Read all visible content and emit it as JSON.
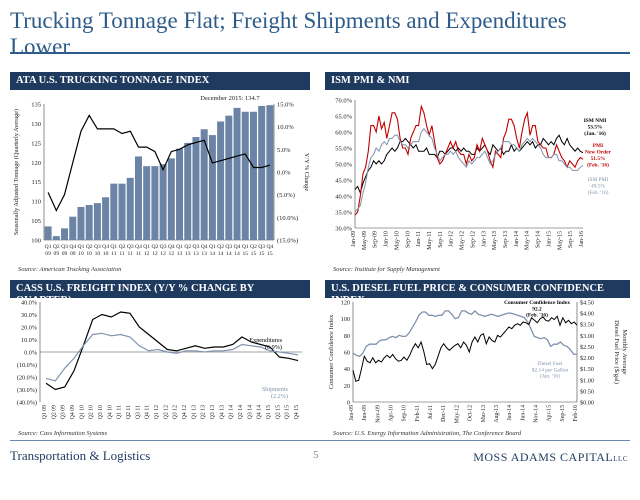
{
  "page": {
    "title": "Trucking Tonnage Flat; Freight Shipments and Expenditures Lower",
    "footer_left": "Transportation & Logistics",
    "page_number": "5",
    "footer_brand": "MOSS ADAMS CAPITAL",
    "footer_brand_suffix": "LLC"
  },
  "panels": {
    "ata": {
      "header": "ATA U.S. TRUCKING TONNAGE INDEX",
      "source": "Source: American Trucking Association"
    },
    "ism": {
      "header": "ISM PMI & NMI",
      "source": "Source: Institute for Supply Management"
    },
    "cass": {
      "header": "CASS U.S. FREIGHT INDEX (Y/Y % CHANGE BY QUARTER)",
      "source": "Source: Cass Information Systems"
    },
    "diesel": {
      "header": "U.S. DIESEL FUEL PRICE & CONSUMER CONFIDENCE INDEX",
      "source": "Source: U.S. Energy Information Administration, The Conference Board"
    }
  },
  "chart_data": [
    {
      "id": "ata",
      "type": "bar",
      "categories": [
        "Q1 09",
        "Q2 09",
        "Q3 09",
        "Q4 09",
        "Q1 10",
        "Q2 10",
        "Q3 10",
        "Q4 10",
        "Q1 11",
        "Q2 11",
        "Q3 11",
        "Q4 11",
        "Q1 12",
        "Q2 12",
        "Q3 12",
        "Q4 12",
        "Q1 13",
        "Q2 13",
        "Q3 13",
        "Q4 13",
        "Q1 14",
        "Q2 14",
        "Q3 14",
        "Q4 14",
        "Q1 15",
        "Q2 15",
        "Q3 15",
        "Q4 15"
      ],
      "tick_top": [
        "Q1",
        "Q2",
        "Q3",
        "Q4",
        "Q1",
        "Q2",
        "Q3",
        "Q4",
        "Q1",
        "Q2",
        "Q3",
        "Q4",
        "Q1",
        "Q2",
        "Q3",
        "Q4",
        "Q1",
        "Q2",
        "Q3",
        "Q4",
        "Q1",
        "Q2",
        "Q3",
        "Q4",
        "Q1",
        "Q2",
        "Q3",
        "Q4"
      ],
      "tick_bottom": [
        "09",
        "09",
        "09",
        "09",
        "10",
        "10",
        "10",
        "10",
        "11",
        "11",
        "11",
        "11",
        "12",
        "12",
        "12",
        "12",
        "13",
        "13",
        "13",
        "13",
        "14",
        "14",
        "14",
        "14",
        "15",
        "15",
        "15",
        "15"
      ],
      "values": [
        103.5,
        101,
        103,
        106,
        108.5,
        109,
        109.5,
        111,
        114.5,
        114.5,
        116,
        121.5,
        119,
        119,
        119.5,
        121,
        123.5,
        125,
        126.5,
        128.5,
        127,
        130.5,
        132,
        134,
        133,
        133,
        134.5,
        134.7
      ],
      "line": {
        "values": [
          -4.5,
          -8.5,
          -5,
          2,
          9,
          12.5,
          9.5,
          9.5,
          9.5,
          8.5,
          9,
          5.5,
          5.5,
          4.5,
          0.5,
          4.5,
          5,
          6,
          6.5,
          7,
          2,
          2.5,
          3,
          3.5,
          4,
          1,
          1,
          1.5
        ]
      },
      "ylabel": "Seasonally Adjusted Tonnage (Quarterly Average)",
      "y2label": "Y/Y % Change",
      "ylim": [
        100,
        135
      ],
      "yticks": [
        100,
        105,
        110,
        115,
        120,
        125,
        130,
        135
      ],
      "y2lim": [
        -15,
        15
      ],
      "y2ticks": [
        15,
        10,
        5,
        0,
        -5,
        -10,
        -15
      ],
      "y2tick_labels": [
        "15.0%",
        "10.0%",
        "5.0%",
        "0.0%",
        "(5.0%)",
        "(10.0%)",
        "(15.0%)"
      ],
      "annotation": "December 2015: 134.7"
    },
    {
      "id": "ism",
      "type": "line",
      "x_ticks": [
        "Jan-09",
        "May-09",
        "Sep-09",
        "Jan-10",
        "May-10",
        "Sep-10",
        "Jan-11",
        "May-11",
        "Sep-11",
        "Jan-12",
        "May-12",
        "Sep-12",
        "Jan-13",
        "May-13",
        "Sep-13",
        "Jan-14",
        "May-14",
        "Sep-14",
        "Jan-15",
        "May-15",
        "Sep-15",
        "Jan-16"
      ],
      "ylim": [
        30,
        70
      ],
      "yticks": [
        30,
        35,
        40,
        45,
        50,
        55,
        60,
        65,
        70
      ],
      "ytick_labels": [
        "30.0%",
        "35.0%",
        "40.0%",
        "45.0%",
        "50.0%",
        "55.0%",
        "60.0%",
        "65.0%",
        "70.0%"
      ],
      "series": [
        {
          "name": "ISM NMI",
          "label": "ISM NMI\n53.5%\n(Jan. '16)",
          "color": "#000000",
          "values": [
            42,
            43,
            41,
            44,
            46,
            48,
            49,
            51,
            50,
            51,
            50,
            51,
            53,
            54,
            55,
            54,
            55,
            57,
            57,
            58,
            57,
            56,
            55,
            56,
            54,
            54,
            54,
            55,
            53,
            53,
            53,
            52,
            54,
            54,
            53,
            54,
            55,
            55,
            54,
            55,
            54,
            55,
            54,
            54,
            53,
            53,
            55,
            54,
            55,
            56,
            54,
            53,
            56,
            55,
            54,
            55,
            53,
            54,
            54,
            56,
            54,
            55,
            54,
            55,
            56,
            57,
            56,
            57,
            55,
            56,
            56,
            58,
            57,
            56,
            57,
            56,
            58,
            59,
            57,
            56,
            58,
            56,
            55,
            54,
            55,
            54,
            53.5
          ]
        },
        {
          "name": "PMI New Order",
          "label": "PMI\nNew Order\n51.5%\n(Feb. '16)",
          "color": "#c00000",
          "values": [
            34,
            35,
            40,
            47,
            49,
            54,
            62,
            62,
            60,
            65,
            61,
            63,
            58,
            62,
            66,
            66,
            64,
            58,
            55,
            55,
            53,
            58,
            60,
            62,
            62,
            68,
            66,
            62,
            59,
            62,
            57,
            52,
            50,
            51,
            53,
            55,
            57,
            55,
            57,
            54,
            53,
            53,
            50,
            53,
            51,
            52,
            56,
            54,
            58,
            56,
            54,
            51,
            49,
            54,
            53,
            52,
            58,
            60,
            64,
            64,
            62,
            58,
            55,
            60,
            64,
            66,
            59,
            62,
            62,
            57,
            56,
            55,
            55,
            52,
            52,
            53,
            56,
            54,
            52,
            51,
            49,
            51,
            50,
            49,
            51,
            52,
            51.5
          ]
        },
        {
          "name": "ISM PMI",
          "label": "ISM PMI\n49.5%\n(Feb. '16)",
          "color": "#7f93ac",
          "values": [
            35,
            36,
            37,
            41,
            44,
            49,
            52,
            53,
            55,
            54,
            56,
            57,
            56,
            58,
            58,
            59,
            59,
            57,
            56,
            56,
            55,
            56,
            57,
            57,
            57,
            60,
            61,
            60,
            59,
            58,
            55,
            53,
            51,
            52,
            53,
            53,
            54,
            53,
            54,
            52,
            51,
            50,
            49,
            51,
            50,
            51,
            52,
            52,
            53,
            54,
            52,
            50,
            51,
            53,
            54,
            55,
            57,
            57,
            57,
            56,
            56,
            55,
            54,
            56,
            57,
            58,
            57,
            58,
            57,
            56,
            55,
            53,
            52,
            52,
            52,
            53,
            53,
            51,
            51,
            50,
            49,
            49,
            48,
            48,
            48,
            49,
            49.5
          ]
        }
      ]
    },
    {
      "id": "cass",
      "type": "line",
      "x_ticks": [
        "Q1 09",
        "Q2 09",
        "Q3 09",
        "Q4 09",
        "Q1 10",
        "Q2 10",
        "Q3 10",
        "Q4 10",
        "Q1 11",
        "Q2 11",
        "Q3 11",
        "Q4 11",
        "Q1 12",
        "Q2 12",
        "Q3 12",
        "Q4 12",
        "Q1 13",
        "Q2 13",
        "Q3 13",
        "Q4 13",
        "Q1 14",
        "Q2 14",
        "Q3 14",
        "Q4 14",
        "Q1 15",
        "Q2 15",
        "Q3 15",
        "Q4 15"
      ],
      "ylim": [
        -40,
        40
      ],
      "yticks": [
        40,
        30,
        20,
        10,
        0,
        -10,
        -20,
        -30,
        -40
      ],
      "ytick_labels": [
        "40.0%",
        "30.0%",
        "20.0%",
        "10.0%",
        "0.0%",
        "(10.0%)",
        "(20.0%)",
        "(30.0%)",
        "(40.0%)"
      ],
      "series": [
        {
          "name": "Expenditures",
          "label": "Expenditures\n(6.9%)",
          "color": "#000000",
          "values": [
            -25,
            -30,
            -28,
            -15,
            5,
            26,
            30,
            28,
            32,
            31,
            20,
            14,
            8,
            2,
            1,
            3,
            5,
            3,
            4,
            4,
            6,
            12,
            8,
            6,
            4,
            -4,
            -5,
            -6.9
          ]
        },
        {
          "name": "Shipments",
          "label": "Shipments\n(2.2%)",
          "color": "#7f93ac",
          "values": [
            -21,
            -23,
            -13,
            -5,
            5,
            14,
            15,
            13,
            14,
            12,
            5,
            1,
            2,
            0,
            -1,
            1,
            1,
            0,
            1,
            1,
            2,
            6,
            5,
            4,
            1,
            0,
            -1,
            -2.2
          ]
        }
      ]
    },
    {
      "id": "diesel",
      "type": "line",
      "x_ticks": [
        "Jan-09",
        "Jun-09",
        "Nov-09",
        "Apr-10",
        "Sep-10",
        "Feb-11",
        "Jul-11",
        "Dec-11",
        "May-12",
        "Oct-12",
        "Mar-13",
        "Aug-13",
        "Jan-14",
        "Jun-14",
        "Nov-14",
        "Apr-15",
        "Sep-15",
        "Feb-16"
      ],
      "ylabel": "Consumer Confidence Index",
      "y2label": "Diesel Fuel Price ($/gal)\nMonthly Average",
      "ylim": [
        0,
        120
      ],
      "yticks": [
        0,
        20,
        40,
        60,
        80,
        100,
        120
      ],
      "y2lim": [
        0,
        4.5
      ],
      "y2ticks": [
        0,
        0.5,
        1,
        1.5,
        2,
        2.5,
        3,
        3.5,
        4,
        4.5
      ],
      "y2tick_labels": [
        "$0.00",
        "$0.50",
        "$1.00",
        "$1.50",
        "$2.00",
        "$2.50",
        "$3.00",
        "$3.50",
        "$4.00",
        "$4.50"
      ],
      "series": [
        {
          "name": "Consumer Confidence Index",
          "label": "Consumer Confidence Index\n92.2\n(Feb. '16)",
          "color": "#000000",
          "axis": "left",
          "values": [
            38,
            25,
            26,
            40,
            55,
            49,
            47,
            53,
            47,
            50,
            48,
            53,
            56,
            53,
            57,
            52,
            49,
            50,
            54,
            50,
            56,
            64,
            70,
            65,
            72,
            60,
            45,
            46,
            40,
            45,
            55,
            65,
            70,
            65,
            62,
            65,
            68,
            70,
            65,
            72,
            68,
            60,
            72,
            78,
            72,
            80,
            82,
            70,
            78,
            74,
            72,
            80,
            78,
            82,
            86,
            90,
            88,
            92,
            94,
            92,
            96,
            95,
            93,
            101,
            98,
            95,
            100,
            102,
            98,
            97,
            101,
            99,
            103,
            92,
            101,
            95,
            98,
            94,
            96,
            92.2
          ]
        },
        {
          "name": "Diesel Fuel",
          "label": "Diesel Fuel\n$2.14 per Gallon\n(Jan. '16)",
          "color": "#7f93ac",
          "axis": "right",
          "values": [
            2.2,
            2.1,
            2.05,
            2.2,
            2.5,
            2.6,
            2.6,
            2.6,
            2.75,
            2.8,
            2.8,
            2.9,
            2.95,
            2.9,
            3.0,
            2.95,
            2.95,
            3.1,
            3.35,
            3.6,
            3.9,
            4.05,
            4.05,
            3.9,
            3.9,
            3.85,
            3.9,
            3.9,
            4.1,
            4.1,
            3.95,
            3.75,
            3.8,
            4.1,
            4.1,
            4.0,
            3.95,
            4.1,
            3.95,
            3.9,
            3.85,
            3.9,
            3.95,
            3.9,
            3.85,
            3.9,
            3.95,
            4.0,
            4.0,
            3.95,
            3.9,
            3.85,
            3.8,
            3.6,
            3.3,
            2.95,
            2.9,
            2.85,
            2.9,
            2.8,
            2.5,
            2.6,
            2.6,
            2.7,
            2.55,
            2.5,
            2.35,
            2.15,
            2.14
          ]
        }
      ]
    }
  ]
}
